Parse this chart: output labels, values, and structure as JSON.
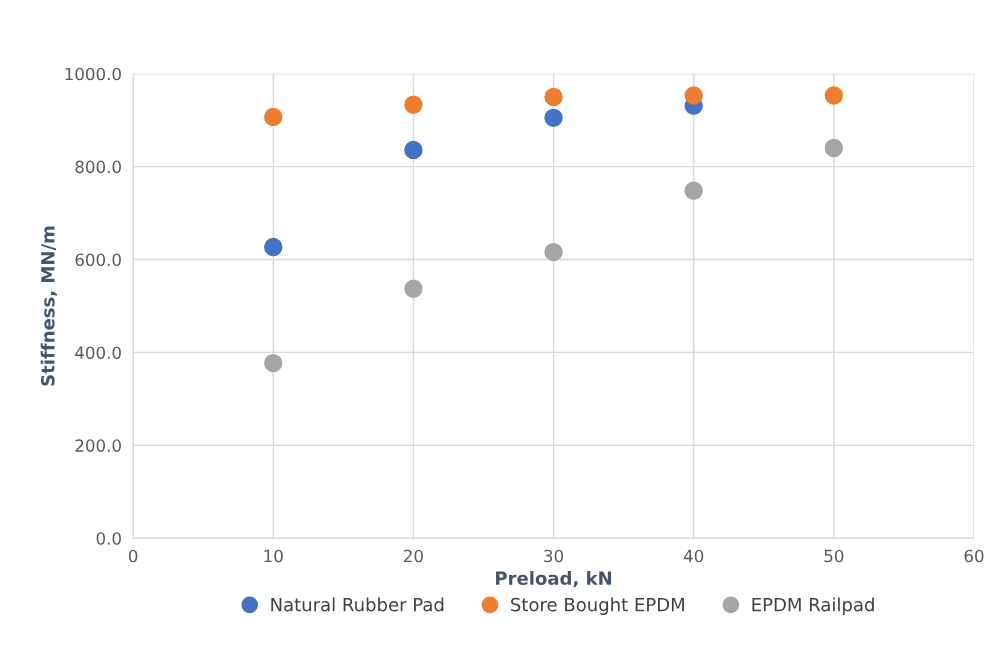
{
  "chart_data": {
    "type": "scatter",
    "xlabel": "Preload, kN",
    "ylabel": "Stiffness, MN/m",
    "x": [
      10,
      20,
      30,
      40,
      50
    ],
    "series": [
      {
        "name": "Natural Rubber Pad",
        "color": "#4472c4",
        "values": [
          627,
          836,
          905,
          931,
          null
        ]
      },
      {
        "name": "Store Bought EPDM",
        "color": "#ed7d31",
        "values": [
          907,
          933,
          950,
          953,
          953
        ]
      },
      {
        "name": "EPDM Railpad",
        "color": "#a5a5a5",
        "values": [
          377,
          537,
          616,
          748,
          840
        ]
      }
    ],
    "xlim": [
      0,
      60
    ],
    "xticks": [
      0,
      10,
      20,
      30,
      40,
      50,
      60
    ],
    "ylim": [
      0,
      1000
    ],
    "yticks": [
      {
        "value": 0,
        "label": "0.0"
      },
      {
        "value": 200,
        "label": "200.0"
      },
      {
        "value": 400,
        "label": "400.0"
      },
      {
        "value": 600,
        "label": "600.0"
      },
      {
        "value": 800,
        "label": "800.0"
      },
      {
        "value": 1000,
        "label": "1000.0"
      }
    ],
    "grid": true,
    "legend": "bottom",
    "marker": "circle"
  }
}
